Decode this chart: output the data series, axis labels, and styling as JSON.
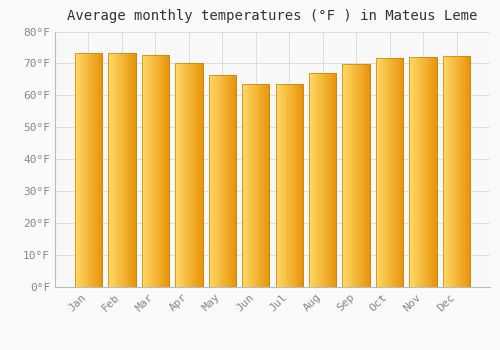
{
  "title": "Average monthly temperatures (°F ) in Mateus Leme",
  "months": [
    "Jan",
    "Feb",
    "Mar",
    "Apr",
    "May",
    "Jun",
    "Jul",
    "Aug",
    "Sep",
    "Oct",
    "Nov",
    "Dec"
  ],
  "values": [
    73.4,
    73.4,
    72.5,
    70.0,
    66.5,
    63.7,
    63.7,
    67.0,
    69.8,
    71.8,
    72.0,
    72.3
  ],
  "bar_color_left": "#FFD966",
  "bar_color_right": "#E8950A",
  "bar_edge_color": "#C8820A",
  "background_color": "#FAFAFA",
  "plot_bg_color": "#F8F8F8",
  "grid_color": "#DDDDDD",
  "ylim": [
    0,
    80
  ],
  "yticks": [
    0,
    10,
    20,
    30,
    40,
    50,
    60,
    70,
    80
  ],
  "ytick_labels": [
    "0°F",
    "10°F",
    "20°F",
    "30°F",
    "40°F",
    "50°F",
    "60°F",
    "70°F",
    "80°F"
  ],
  "title_fontsize": 10,
  "tick_fontsize": 8,
  "tick_color": "#888888",
  "spine_color": "#BBBBBB",
  "bar_width": 0.82
}
